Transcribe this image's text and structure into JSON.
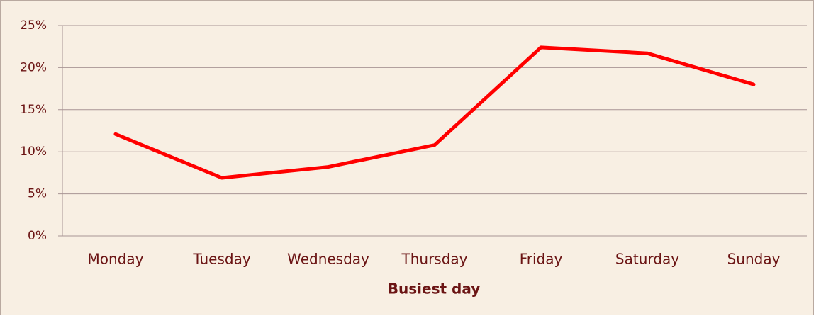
{
  "chart_data": {
    "type": "line",
    "categories": [
      "Monday",
      "Tuesday",
      "Wednesday",
      "Thursday",
      "Friday",
      "Saturday",
      "Sunday"
    ],
    "series": [
      {
        "name": "Busiest day",
        "color": "#ff0000",
        "values": [
          12.1,
          6.9,
          8.2,
          10.8,
          22.4,
          21.7,
          18.0
        ]
      }
    ],
    "x_label": "Busiest day",
    "ylim": [
      0,
      25
    ],
    "yticks": [
      {
        "value": 0,
        "label": "0%"
      },
      {
        "value": 5,
        "label": "5%"
      },
      {
        "value": 10,
        "label": "10%"
      },
      {
        "value": 15,
        "label": "15%"
      },
      {
        "value": 20,
        "label": "20%"
      },
      {
        "value": 25,
        "label": "25%"
      }
    ],
    "grid": true
  }
}
